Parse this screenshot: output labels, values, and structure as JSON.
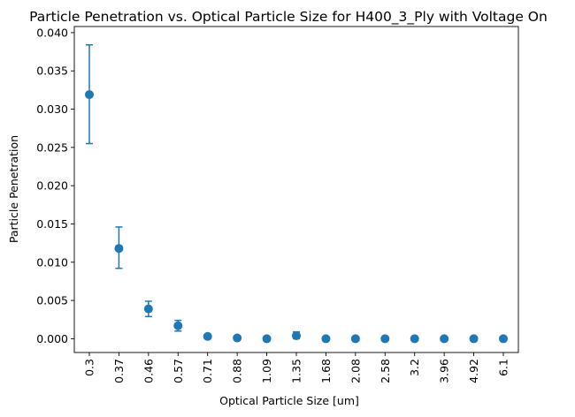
{
  "chart_data": {
    "type": "scatter",
    "title": "Particle Penetration vs. Optical Particle Size for H400_3_Ply with Voltage On",
    "xlabel": "Optical Particle Size [um]",
    "ylabel": "Particle Penetration",
    "categories": [
      "0.3",
      "0.37",
      "0.46",
      "0.57",
      "0.71",
      "0.88",
      "1.09",
      "1.35",
      "1.68",
      "2.08",
      "2.58",
      "3.2",
      "3.96",
      "4.92",
      "6.1"
    ],
    "y_ticks": [
      "0.000",
      "0.005",
      "0.010",
      "0.015",
      "0.020",
      "0.025",
      "0.030",
      "0.035",
      "0.040"
    ],
    "ylim": [
      -0.0018,
      0.0408
    ],
    "grid": false,
    "series": [
      {
        "color": "#1f77b4",
        "values": [
          0.0319,
          0.0118,
          0.0039,
          0.0017,
          0.0003,
          0.0001,
          0.0,
          0.0004,
          0.0,
          0.0,
          0.0,
          0.0,
          0.0,
          0.0,
          0.0
        ],
        "error_low": [
          0.0255,
          0.0092,
          0.0029,
          0.001,
          0.0001,
          0.0,
          0.0,
          0.0,
          0.0,
          0.0,
          0.0,
          0.0,
          0.0,
          0.0,
          0.0
        ],
        "error_high": [
          0.0384,
          0.0146,
          0.0049,
          0.0024,
          0.0005,
          0.0002,
          0.0001,
          0.0009,
          0.0001,
          0.0,
          0.0,
          0.0,
          0.0,
          0.0,
          0.0
        ]
      }
    ]
  }
}
